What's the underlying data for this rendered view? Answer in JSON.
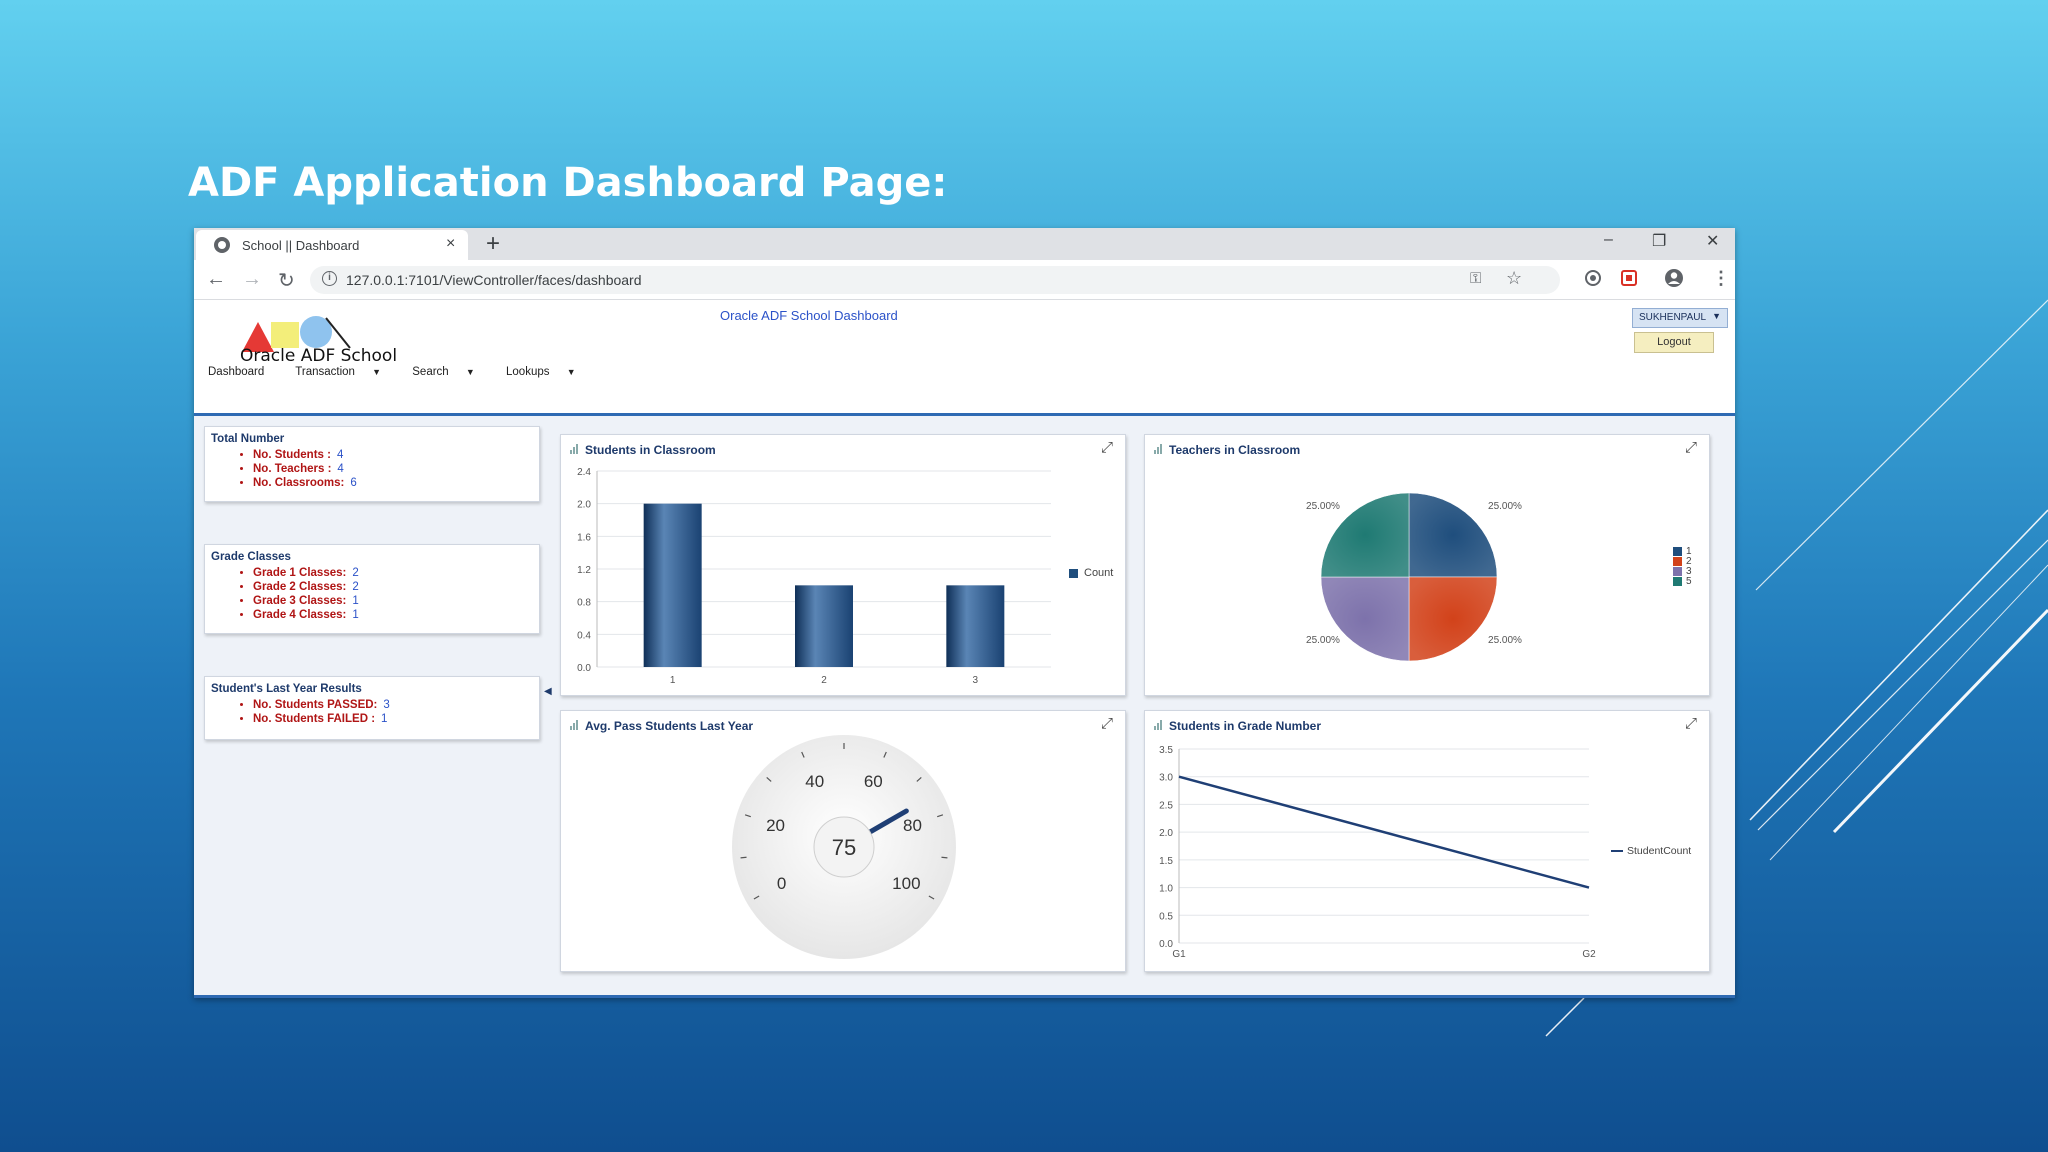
{
  "slide": {
    "title": "ADF Application Dashboard Page:"
  },
  "browser": {
    "tab_title": "School || Dashboard",
    "new_tab": "+",
    "close_tab": "×",
    "url": "127.0.0.1:7101/ViewController/faces/dashboard",
    "controls": {
      "minimize": "–",
      "restore": "❐",
      "close": "✕"
    },
    "nav": {
      "back": "←",
      "forward": "→",
      "reload": "↻"
    }
  },
  "app": {
    "logo_text": "Oracle ADF School",
    "title": "Oracle ADF School Dashboard",
    "user": "SUKHENPAUL",
    "logout": "Logout",
    "menu": [
      {
        "label": "Dashboard",
        "dropdown": false
      },
      {
        "label": "Transaction",
        "dropdown": true
      },
      {
        "label": "Search",
        "dropdown": true
      },
      {
        "label": "Lookups",
        "dropdown": true
      }
    ]
  },
  "sidebar": {
    "total": {
      "heading": "Total Number",
      "items": [
        {
          "label": "No. Students :",
          "value": "4"
        },
        {
          "label": "No. Teachers :",
          "value": "4"
        },
        {
          "label": "No. Classrooms:",
          "value": "6"
        }
      ]
    },
    "grades": {
      "heading": "Grade Classes",
      "items": [
        {
          "label": "Grade 1 Classes:",
          "value": "2"
        },
        {
          "label": "Grade 2 Classes:",
          "value": "2"
        },
        {
          "label": "Grade 3 Classes:",
          "value": "1"
        },
        {
          "label": "Grade 4 Classes:",
          "value": "1"
        }
      ]
    },
    "results": {
      "heading": "Student's Last Year Results",
      "items": [
        {
          "label": "No. Students PASSED:",
          "value": "3"
        },
        {
          "label": "No. Students FAILED :",
          "value": "1"
        }
      ]
    }
  },
  "panels": {
    "students_classroom": "Students in Classroom",
    "teachers_classroom": "Teachers in Classroom",
    "avg_pass": "Avg. Pass Students Last Year",
    "grade_number": "Students in Grade Number"
  },
  "colors": {
    "pie": [
      "#1f4e7d",
      "#d2421a",
      "#7d72ab",
      "#1f7a73"
    ],
    "bar": "#1f4e7d",
    "line": "#1f3f75"
  },
  "chart_data": [
    {
      "type": "bar",
      "title": "Students in Classroom",
      "categories": [
        "1",
        "2",
        "3"
      ],
      "series": [
        {
          "name": "Count",
          "values": [
            2,
            1,
            1
          ]
        }
      ],
      "yticks": [
        "0.0",
        "0.4",
        "0.8",
        "1.2",
        "1.6",
        "2.0",
        "2.4"
      ],
      "ylim": [
        0,
        2.4
      ],
      "legend": "right"
    },
    {
      "type": "pie",
      "title": "Teachers in Classroom",
      "slices": [
        {
          "name": "1",
          "value": 25,
          "label": "25.00%"
        },
        {
          "name": "2",
          "value": 25,
          "label": "25.00%"
        },
        {
          "name": "3",
          "value": 25,
          "label": "25.00%"
        },
        {
          "name": "5",
          "value": 25,
          "label": "25.00%"
        }
      ],
      "legend": "right"
    },
    {
      "type": "gauge",
      "title": "Avg. Pass Students Last Year",
      "value": 75,
      "value_label": "75",
      "range": [
        0,
        100
      ],
      "tick_labels": [
        "0",
        "20",
        "40",
        "60",
        "80",
        "100"
      ]
    },
    {
      "type": "line",
      "title": "Students in Grade Number",
      "categories": [
        "G1",
        "G2"
      ],
      "series": [
        {
          "name": "StudentCount",
          "values": [
            3,
            1
          ]
        }
      ],
      "yticks": [
        "0.0",
        "0.5",
        "1.0",
        "1.5",
        "2.0",
        "2.5",
        "3.0",
        "3.5"
      ],
      "ylim": [
        0,
        3.5
      ],
      "legend": "right"
    }
  ]
}
